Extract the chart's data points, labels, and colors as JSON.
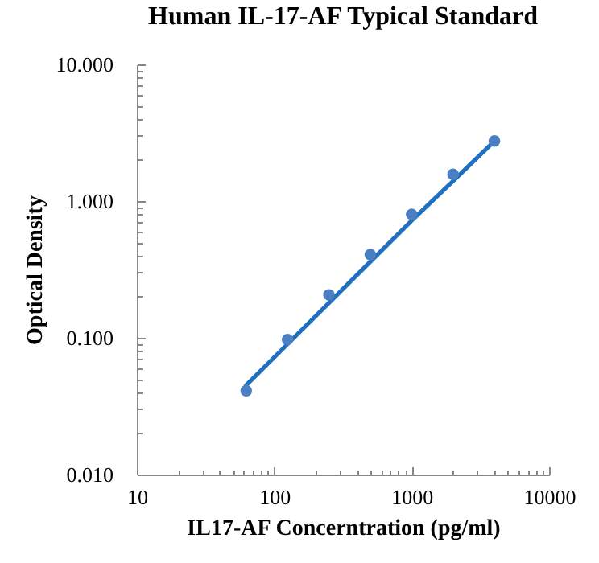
{
  "chart_data": {
    "type": "scatter",
    "title": "Human IL-17-AF Typical Standard",
    "xlabel": "IL17-AF Concerntration (pg/ml)",
    "ylabel": "Optical Density",
    "log": "xy",
    "grid": false,
    "xlim": [
      10,
      10000
    ],
    "xticks": [
      10,
      {
        "value": 20,
        "label": null
      },
      {
        "value": 30,
        "label": null
      },
      {
        "value": 40,
        "label": null
      },
      {
        "value": 50,
        "label": null
      },
      {
        "value": 60,
        "label": null
      },
      {
        "value": 70,
        "label": null
      },
      {
        "value": 80,
        "label": null
      },
      {
        "value": 90,
        "label": null
      },
      100,
      {
        "value": 200,
        "label": null
      },
      {
        "value": 300,
        "label": null
      },
      {
        "value": 400,
        "label": null
      },
      {
        "value": 500,
        "label": null
      },
      {
        "value": 600,
        "label": null
      },
      {
        "value": 700,
        "label": null
      },
      {
        "value": 800,
        "label": null
      },
      {
        "value": 900,
        "label": null
      },
      1000,
      {
        "value": 2000,
        "label": null
      },
      {
        "value": 3000,
        "label": null
      },
      {
        "value": 4000,
        "label": null
      },
      {
        "value": 5000,
        "label": null
      },
      {
        "value": 6000,
        "label": null
      },
      {
        "value": 7000,
        "label": null
      },
      {
        "value": 8000,
        "label": null
      },
      {
        "value": 9000,
        "label": null
      },
      10000
    ],
    "ylim": [
      0.01,
      10
    ],
    "yticks": [
      {
        "value": 0.01,
        "label": "0.010"
      },
      {
        "value": 0.02,
        "label": null
      },
      {
        "value": 0.03,
        "label": null
      },
      {
        "value": 0.04,
        "label": null
      },
      {
        "value": 0.05,
        "label": null
      },
      {
        "value": 0.06,
        "label": null
      },
      {
        "value": 0.07,
        "label": null
      },
      {
        "value": 0.08,
        "label": null
      },
      {
        "value": 0.09,
        "label": null
      },
      {
        "value": 0.1,
        "label": "0.100"
      },
      {
        "value": 0.2,
        "label": null
      },
      {
        "value": 0.3,
        "label": null
      },
      {
        "value": 0.4,
        "label": null
      },
      {
        "value": 0.5,
        "label": null
      },
      {
        "value": 0.6,
        "label": null
      },
      {
        "value": 0.7,
        "label": null
      },
      {
        "value": 0.8,
        "label": null
      },
      {
        "value": 0.9,
        "label": null
      },
      {
        "value": 1,
        "label": "1.000"
      },
      {
        "value": 2,
        "label": null
      },
      {
        "value": 3,
        "label": null
      },
      {
        "value": 4,
        "label": null
      },
      {
        "value": 5,
        "label": null
      },
      {
        "value": 6,
        "label": null
      },
      {
        "value": 7,
        "label": null
      },
      {
        "value": 8,
        "label": null
      },
      {
        "value": 9,
        "label": null
      },
      {
        "value": 10,
        "label": "10.000"
      }
    ],
    "series": [
      {
        "type": "line",
        "color": "#1f70c1",
        "x": [
          62.5,
          125,
          250,
          500,
          1000,
          2000,
          4000
        ],
        "values": [
          0.045,
          0.09,
          0.18,
          0.36,
          0.72,
          1.4,
          2.75
        ]
      },
      {
        "marker": "circle",
        "color": "#4a7fc1",
        "x": [
          62.5,
          125,
          250,
          500,
          1000,
          2000,
          4000
        ],
        "values": [
          0.041,
          0.097,
          0.206,
          0.406,
          0.8,
          1.57,
          2.75
        ]
      }
    ]
  }
}
